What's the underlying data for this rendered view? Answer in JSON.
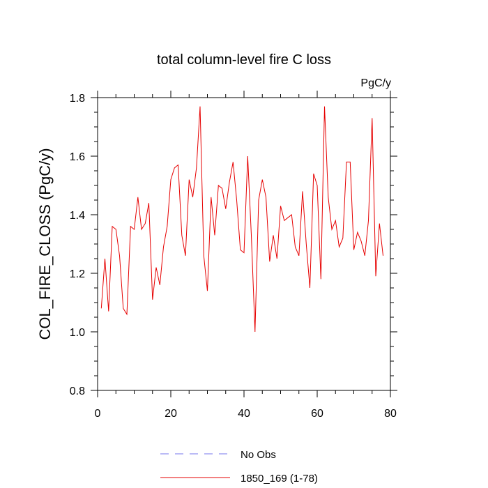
{
  "chart_data": {
    "type": "line",
    "title": "total column-level fire C loss",
    "units": "PgC/y",
    "ylabel": "COL_FIRE_CLOSS  (PgC/y)",
    "xlabel": "",
    "xlim": [
      0,
      80
    ],
    "ylim": [
      0.8,
      1.8
    ],
    "xticks": [
      "0",
      "20",
      "40",
      "60",
      "80"
    ],
    "yticks": [
      "0.8",
      "1.0",
      "1.2",
      "1.4",
      "1.6",
      "1.8"
    ],
    "grid": false,
    "legend": [
      {
        "name": "No Obs",
        "color": "#7777ee",
        "style": "dashed"
      },
      {
        "name": "1850_169 (1-78)",
        "color": "#e60000",
        "style": "solid"
      }
    ],
    "series": [
      {
        "name": "1850_169 (1-78)",
        "color": "#e60000",
        "x": [
          1,
          2,
          3,
          4,
          5,
          6,
          7,
          8,
          9,
          10,
          11,
          12,
          13,
          14,
          15,
          16,
          17,
          18,
          19,
          20,
          21,
          22,
          23,
          24,
          25,
          26,
          27,
          28,
          29,
          30,
          31,
          32,
          33,
          34,
          35,
          36,
          37,
          38,
          39,
          40,
          41,
          42,
          43,
          44,
          45,
          46,
          47,
          48,
          49,
          50,
          51,
          52,
          53,
          54,
          55,
          56,
          57,
          58,
          59,
          60,
          61,
          62,
          63,
          64,
          65,
          66,
          67,
          68,
          69,
          70,
          71,
          72,
          73,
          74,
          75,
          76,
          77,
          78
        ],
        "values": [
          1.08,
          1.25,
          1.07,
          1.36,
          1.35,
          1.26,
          1.08,
          1.06,
          1.36,
          1.35,
          1.46,
          1.35,
          1.37,
          1.44,
          1.11,
          1.22,
          1.16,
          1.29,
          1.36,
          1.52,
          1.56,
          1.57,
          1.33,
          1.26,
          1.52,
          1.46,
          1.56,
          1.77,
          1.26,
          1.14,
          1.46,
          1.33,
          1.5,
          1.49,
          1.42,
          1.51,
          1.58,
          1.45,
          1.28,
          1.27,
          1.6,
          1.33,
          1.0,
          1.45,
          1.52,
          1.46,
          1.24,
          1.33,
          1.25,
          1.43,
          1.38,
          1.39,
          1.4,
          1.29,
          1.26,
          1.48,
          1.3,
          1.15,
          1.54,
          1.5,
          1.18,
          1.77,
          1.46,
          1.35,
          1.38,
          1.29,
          1.32,
          1.58,
          1.58,
          1.28,
          1.34,
          1.31,
          1.26,
          1.38,
          1.73,
          1.19,
          1.37,
          1.26
        ]
      }
    ]
  }
}
